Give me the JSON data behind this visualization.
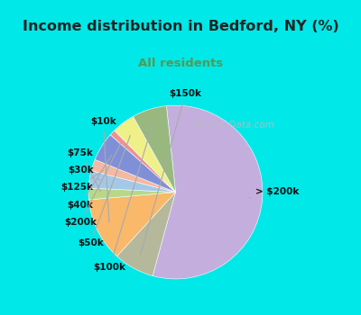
{
  "title": "Income distribution in Bedford, NY (%)",
  "subtitle": "All residents",
  "watermark": "© City-Data.com",
  "sizes": [
    52,
    7,
    11,
    2,
    3,
    2,
    5,
    1,
    4,
    6,
    7
  ],
  "labels": [
    "> $200k",
    "$150k",
    "$10k",
    "$75k",
    "$30k",
    "$125k",
    "$40k",
    "$200k",
    "$50k",
    "$100k"
  ],
  "sizes10": [
    52,
    7,
    11,
    2,
    3,
    2,
    5,
    1,
    4,
    6
  ],
  "colors": [
    "#c4aede",
    "#b5b89a",
    "#f9b86a",
    "#b8d888",
    "#a4c8e8",
    "#f5b8a0",
    "#8090d8",
    "#f09090",
    "#f0f088",
    "#98b880"
  ],
  "bg_outer": "#00e8e8",
  "bg_chart": "#dff0e8",
  "title_color": "#222222",
  "subtitle_color": "#559955",
  "watermark_color": "#aaaaaa",
  "title_fontsize": 11.5,
  "subtitle_fontsize": 9.5,
  "label_fontsize": 7.5,
  "start_angle": 96,
  "label_items": [
    {
      "> $200k": [
        0.98,
        0.38
      ]
    },
    {
      "$150k": [
        0.36,
        0.94
      ]
    },
    {
      "$10k": [
        -0.22,
        0.82
      ]
    },
    {
      "$75k": [
        -0.42,
        0.53
      ]
    },
    {
      "$30k": [
        -0.44,
        0.4
      ]
    },
    {
      "$125k": [
        -0.44,
        0.27
      ]
    },
    {
      "$40k": [
        -0.44,
        0.14
      ]
    },
    {
      "$200k": [
        -0.42,
        0.01
      ]
    },
    {
      "$50k": [
        -0.4,
        -0.14
      ]
    },
    {
      "$100k": [
        -0.34,
        -0.3
      ]
    }
  ]
}
